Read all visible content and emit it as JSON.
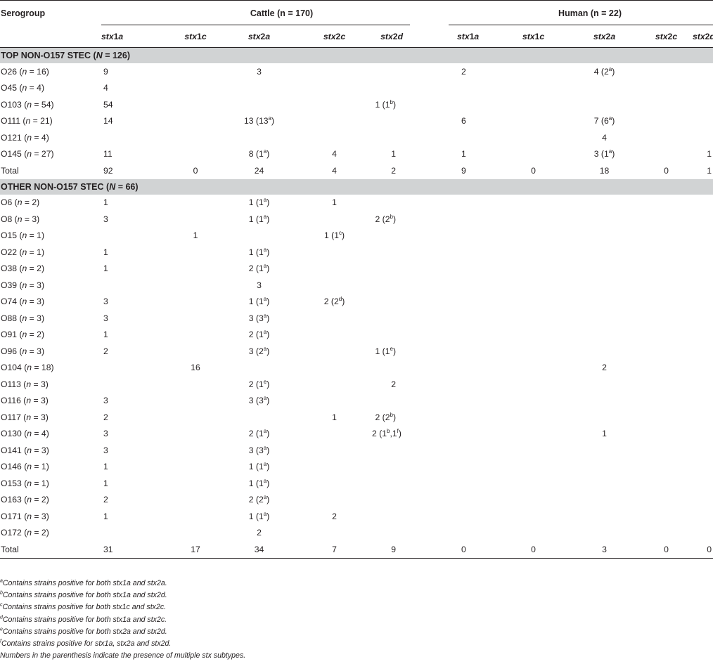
{
  "header": {
    "serogroup": "Serogroup",
    "cattle": "Cattle (n = 170)",
    "human": "Human (n = 22)",
    "subtypes": [
      "stx1a",
      "stx1c",
      "stx2a",
      "stx2c",
      "stx2d"
    ]
  },
  "sections": [
    {
      "title": "TOP NON-O157 STEC (N = 126)",
      "rows": [
        {
          "sg": "O26",
          "n": "(n = 16)",
          "cattle": [
            "9",
            "",
            "3",
            "",
            ""
          ],
          "human": [
            "2",
            "",
            "4 (2a)",
            "",
            ""
          ]
        },
        {
          "sg": "O45",
          "n": "(n = 4)",
          "cattle": [
            "4",
            "",
            "",
            "",
            ""
          ],
          "human": [
            "",
            "",
            "",
            "",
            ""
          ]
        },
        {
          "sg": "O103",
          "n": "(n = 54)",
          "cattle": [
            "54",
            "",
            "",
            "",
            "1 (1b)"
          ],
          "human": [
            "",
            "",
            "",
            "",
            ""
          ]
        },
        {
          "sg": "O111",
          "n": "(n = 21)",
          "cattle": [
            "14",
            "",
            "13 (13a)",
            "",
            ""
          ],
          "human": [
            "6",
            "",
            "7 (6a)",
            "",
            ""
          ]
        },
        {
          "sg": "O121",
          "n": "(n = 4)",
          "cattle": [
            "",
            "",
            "",
            "",
            ""
          ],
          "human": [
            "",
            "",
            "4",
            "",
            ""
          ]
        },
        {
          "sg": "O145",
          "n": "(n = 27)",
          "cattle": [
            "11",
            "",
            "8 (1a)",
            "4",
            "1"
          ],
          "human": [
            "1",
            "",
            "3 (1a)",
            "",
            "1"
          ]
        },
        {
          "sg": "Total",
          "n": "",
          "cattle": [
            "92",
            "0",
            "24",
            "4",
            "2"
          ],
          "human": [
            "9",
            "0",
            "18",
            "0",
            "1"
          ]
        }
      ]
    },
    {
      "title": "OTHER NON-O157 STEC (N = 66)",
      "rows": [
        {
          "sg": "O6",
          "n": "(n = 2)",
          "cattle": [
            "1",
            "",
            "1 (1a)",
            "1",
            ""
          ],
          "human": [
            "",
            "",
            "",
            "",
            ""
          ]
        },
        {
          "sg": "O8",
          "n": "(n = 3)",
          "cattle": [
            "3",
            "",
            "1 (1a)",
            "",
            "2 (2b)"
          ],
          "human": [
            "",
            "",
            "",
            "",
            ""
          ]
        },
        {
          "sg": "O15",
          "n": "(n = 1)",
          "cattle": [
            "",
            "1",
            "",
            "1 (1c)",
            ""
          ],
          "human": [
            "",
            "",
            "",
            "",
            ""
          ]
        },
        {
          "sg": "O22",
          "n": "(n = 1)",
          "cattle": [
            "1",
            "",
            "1 (1a)",
            "",
            ""
          ],
          "human": [
            "",
            "",
            "",
            "",
            ""
          ]
        },
        {
          "sg": "O38",
          "n": "(n = 2)",
          "cattle": [
            "1",
            "",
            "2 (1a)",
            "",
            ""
          ],
          "human": [
            "",
            "",
            "",
            "",
            ""
          ]
        },
        {
          "sg": "O39",
          "n": "(n = 3)",
          "cattle": [
            "",
            "",
            "3",
            "",
            ""
          ],
          "human": [
            "",
            "",
            "",
            "",
            ""
          ]
        },
        {
          "sg": "O74",
          "n": "(n = 3)",
          "cattle": [
            "3",
            "",
            "1 (1a)",
            "2 (2d)",
            ""
          ],
          "human": [
            "",
            "",
            "",
            "",
            ""
          ]
        },
        {
          "sg": "O88",
          "n": "(n = 3)",
          "cattle": [
            "3",
            "",
            "3 (3a)",
            "",
            ""
          ],
          "human": [
            "",
            "",
            "",
            "",
            ""
          ]
        },
        {
          "sg": "O91",
          "n": "(n = 2)",
          "cattle": [
            "1",
            "",
            "2 (1a)",
            "",
            ""
          ],
          "human": [
            "",
            "",
            "",
            "",
            ""
          ]
        },
        {
          "sg": "O96",
          "n": "(n = 3)",
          "cattle": [
            "2",
            "",
            "3 (2a)",
            "",
            "1 (1e)"
          ],
          "human": [
            "",
            "",
            "",
            "",
            ""
          ]
        },
        {
          "sg": "O104",
          "n": "(n = 18)",
          "cattle": [
            "",
            "16",
            "",
            "",
            ""
          ],
          "human": [
            "",
            "",
            "2",
            "",
            ""
          ]
        },
        {
          "sg": "O113",
          "n": "(n = 3)",
          "cattle": [
            "",
            "",
            "2 (1e)",
            "",
            "2"
          ],
          "human": [
            "",
            "",
            "",
            "",
            ""
          ]
        },
        {
          "sg": "O116",
          "n": "(n = 3)",
          "cattle": [
            "3",
            "",
            "3 (3a)",
            "",
            ""
          ],
          "human": [
            "",
            "",
            "",
            "",
            ""
          ]
        },
        {
          "sg": "O117",
          "n": "(n = 3)",
          "cattle": [
            "2",
            "",
            "",
            "1",
            "2 (2b)"
          ],
          "human": [
            "",
            "",
            "",
            "",
            ""
          ]
        },
        {
          "sg": "O130",
          "n": "(n = 4)",
          "cattle": [
            "3",
            "",
            "2 (1a)",
            "",
            "2 (1b,1f)"
          ],
          "human": [
            "",
            "",
            "1",
            "",
            ""
          ]
        },
        {
          "sg": "O141",
          "n": "(n = 3)",
          "cattle": [
            "3",
            "",
            "3 (3a)",
            "",
            ""
          ],
          "human": [
            "",
            "",
            "",
            "",
            ""
          ]
        },
        {
          "sg": "O146",
          "n": "(n = 1)",
          "cattle": [
            "1",
            "",
            "1 (1a)",
            "",
            ""
          ],
          "human": [
            "",
            "",
            "",
            "",
            ""
          ]
        },
        {
          "sg": "O153",
          "n": "(n = 1)",
          "cattle": [
            "1",
            "",
            "1 (1a)",
            "",
            ""
          ],
          "human": [
            "",
            "",
            "",
            "",
            ""
          ]
        },
        {
          "sg": "O163",
          "n": "(n = 2)",
          "cattle": [
            "2",
            "",
            "2 (2a)",
            "",
            ""
          ],
          "human": [
            "",
            "",
            "",
            "",
            ""
          ]
        },
        {
          "sg": "O171",
          "n": "(n = 3)",
          "cattle": [
            "1",
            "",
            "1 (1a)",
            "2",
            ""
          ],
          "human": [
            "",
            "",
            "",
            "",
            ""
          ]
        },
        {
          "sg": "O172",
          "n": "(n = 2)",
          "cattle": [
            "",
            "",
            "2",
            "",
            ""
          ],
          "human": [
            "",
            "",
            "",
            "",
            ""
          ]
        },
        {
          "sg": "Total",
          "n": "",
          "cattle": [
            "31",
            "17",
            "34",
            "7",
            "9"
          ],
          "human": [
            "0",
            "0",
            "3",
            "0",
            "0"
          ]
        }
      ]
    }
  ],
  "footnotes": [
    {
      "mark": "a",
      "text": "Contains strains positive for both stx1a and stx2a."
    },
    {
      "mark": "b",
      "text": "Contains strains positive for both stx1a and stx2d."
    },
    {
      "mark": "c",
      "text": "Contains strains positive for both stx1c and stx2c."
    },
    {
      "mark": "d",
      "text": "Contains strains positive for both stx1a and stx2c."
    },
    {
      "mark": "e",
      "text": "Contains strains positive for both stx2a and stx2d."
    },
    {
      "mark": "f",
      "text": "Contains strains positive for stx1a, stx2a and stx2d."
    },
    {
      "mark": "",
      "text": "Numbers in the parenthesis indicate the presence of multiple stx subtypes."
    }
  ]
}
